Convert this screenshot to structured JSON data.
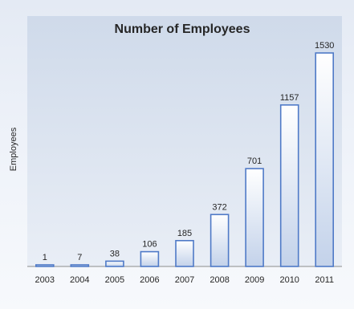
{
  "chart_data": {
    "type": "bar",
    "title": "Number of Employees",
    "xlabel": "",
    "ylabel": "Employees",
    "categories": [
      "2003",
      "2004",
      "2005",
      "2006",
      "2007",
      "2008",
      "2009",
      "2010",
      "2011"
    ],
    "values": [
      1,
      7,
      38,
      106,
      185,
      372,
      701,
      1157,
      1530
    ],
    "data_labels": [
      "1",
      "7",
      "38",
      "106",
      "185",
      "372",
      "701",
      "1157",
      "1530"
    ],
    "ylim": [
      0,
      1700
    ],
    "grid": false,
    "legend": "none",
    "colors": {
      "bar_fill_top": "#ffffff",
      "bar_fill_bottom": "#c3d2ea",
      "bar_stroke": "#4f7ac7",
      "plot_bg": "#d6e0ee",
      "axis": "#7f7f7f"
    }
  }
}
